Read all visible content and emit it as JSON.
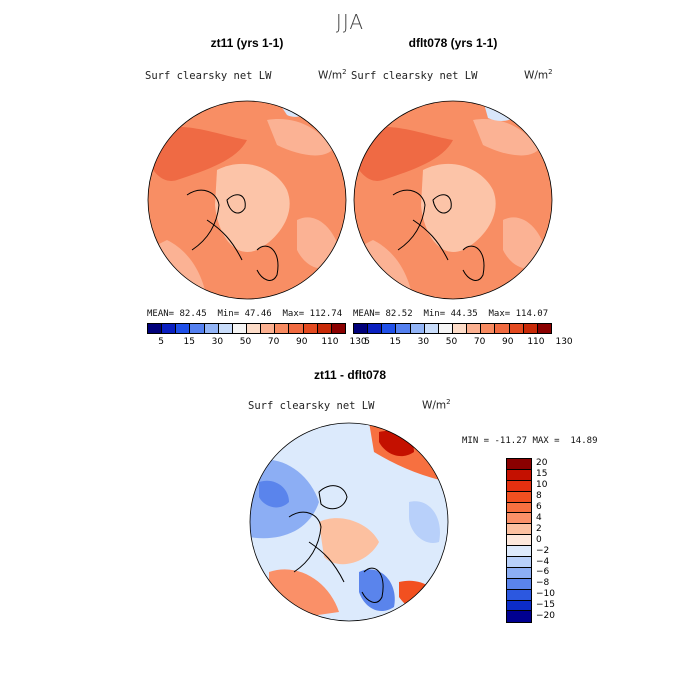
{
  "season": "JJA",
  "panels": [
    {
      "title": "zt11 (yrs 1-1)",
      "variable": "Surf clearsky net LW",
      "units": "W/m",
      "units_sup": "2",
      "stats": {
        "mean_label": "MEAN=",
        "mean": "82.45",
        "min_label": "Min=",
        "min": "47.46",
        "max_label": "Max=",
        "max": "112.74"
      }
    },
    {
      "title": "dflt078 (yrs 1-1)",
      "variable": "Surf clearsky net LW",
      "units": "W/m",
      "units_sup": "2",
      "stats": {
        "mean_label": "MEAN=",
        "mean": "82.52",
        "min_label": "Min=",
        "min": "44.35",
        "max_label": "Max=",
        "max": "114.07"
      }
    },
    {
      "title": "zt11 - dflt078",
      "variable": "Surf clearsky net LW",
      "units": "W/m",
      "units_sup": "2",
      "stats": {
        "min_label": "MIN =",
        "min": "-11.27",
        "max_label": "MAX =",
        "max": "14.89"
      }
    }
  ],
  "abs_colorbar": {
    "colors": [
      "#00007a",
      "#0a1fc0",
      "#2050e8",
      "#5480f0",
      "#92b4f6",
      "#c8dcfa",
      "#f5f5f5",
      "#fddcc8",
      "#fbb090",
      "#f78a60",
      "#f06a40",
      "#e34a20",
      "#c82a08",
      "#8a0000"
    ],
    "labels": [
      "5",
      "15",
      "30",
      "50",
      "70",
      "90",
      "110",
      "130"
    ]
  },
  "diff_colorbar": {
    "colors": [
      "#8a0000",
      "#c41000",
      "#e43010",
      "#f25020",
      "#f77040",
      "#fa9068",
      "#fcc0a0",
      "#fde8dc",
      "#ddeafc",
      "#b8d0fa",
      "#8caef4",
      "#5a84ec",
      "#2c58e0",
      "#0c2cc8",
      "#000090"
    ],
    "labels": [
      "20",
      "15",
      "10",
      "8",
      "6",
      "4",
      "2",
      "0",
      "−2",
      "−4",
      "−6",
      "−8",
      "−10",
      "−15",
      "−20"
    ]
  }
}
